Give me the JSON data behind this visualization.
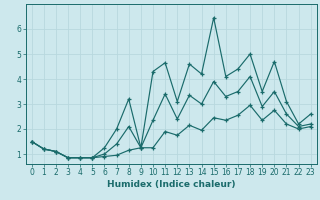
{
  "xlabel": "Humidex (Indice chaleur)",
  "xlim": [
    -0.5,
    23.5
  ],
  "ylim": [
    0.6,
    7.0
  ],
  "yticks": [
    1,
    2,
    3,
    4,
    5,
    6
  ],
  "xticks": [
    0,
    1,
    2,
    3,
    4,
    5,
    6,
    7,
    8,
    9,
    10,
    11,
    12,
    13,
    14,
    15,
    16,
    17,
    18,
    19,
    20,
    21,
    22,
    23
  ],
  "background_color": "#cde8ed",
  "grid_color": "#b8d8de",
  "line_color": "#1a6b6b",
  "x_volatile": [
    0,
    1,
    2,
    3,
    4,
    5,
    6,
    7,
    8,
    9,
    10,
    11,
    12,
    13,
    14,
    15,
    16,
    17,
    18,
    19,
    20,
    21,
    22,
    23
  ],
  "y_volatile": [
    1.5,
    1.2,
    1.1,
    0.85,
    0.85,
    0.85,
    1.25,
    2.0,
    3.2,
    1.25,
    4.3,
    4.65,
    3.1,
    4.6,
    4.2,
    6.45,
    4.1,
    4.4,
    5.0,
    3.5,
    4.7,
    3.1,
    2.2,
    2.6
  ],
  "x_mean": [
    0,
    1,
    2,
    3,
    4,
    5,
    6,
    7,
    8,
    9,
    10,
    11,
    12,
    13,
    14,
    15,
    16,
    17,
    18,
    19,
    20,
    21,
    22,
    23
  ],
  "y_mean": [
    1.5,
    1.2,
    1.1,
    0.85,
    0.85,
    0.85,
    1.0,
    1.4,
    2.1,
    1.25,
    2.35,
    3.4,
    2.4,
    3.35,
    3.0,
    3.9,
    3.3,
    3.5,
    4.1,
    2.9,
    3.5,
    2.6,
    2.1,
    2.2
  ],
  "x_min": [
    0,
    1,
    2,
    3,
    4,
    5,
    6,
    7,
    8,
    9,
    10,
    11,
    12,
    13,
    14,
    15,
    16,
    17,
    18,
    19,
    20,
    21,
    22,
    23
  ],
  "y_min": [
    1.5,
    1.2,
    1.1,
    0.85,
    0.85,
    0.85,
    0.9,
    0.95,
    1.15,
    1.25,
    1.25,
    1.9,
    1.75,
    2.15,
    1.95,
    2.45,
    2.35,
    2.55,
    2.95,
    2.35,
    2.75,
    2.2,
    2.0,
    2.1
  ]
}
